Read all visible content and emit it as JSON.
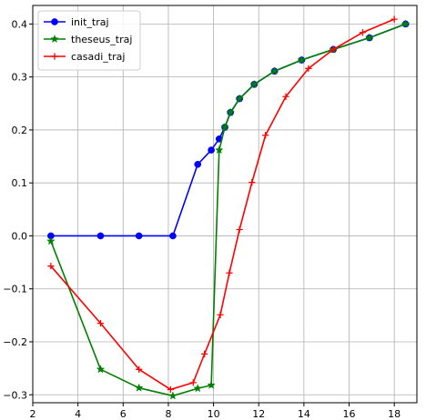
{
  "chart_data": {
    "type": "line",
    "title": "",
    "xlabel": "",
    "ylabel": "",
    "xlim": [
      2.0,
      19.0
    ],
    "ylim": [
      -0.315,
      0.435
    ],
    "xticks": [
      2,
      4,
      6,
      8,
      10,
      12,
      14,
      16,
      18
    ],
    "yticks": [
      -0.3,
      -0.2,
      -0.1,
      0.0,
      0.1,
      0.2,
      0.3,
      0.4
    ],
    "xtick_labels": [
      "2",
      "4",
      "6",
      "8",
      "10",
      "12",
      "14",
      "16",
      "18"
    ],
    "ytick_labels": [
      "−0.3",
      "−0.2",
      "−0.1",
      "0.0",
      "0.1",
      "0.2",
      "0.3",
      "0.4"
    ],
    "grid": true,
    "legend_position": "top-left",
    "series": [
      {
        "name": "init_traj",
        "color": "#0000ff",
        "marker": "circle",
        "x": [
          2.8,
          5.0,
          6.7,
          8.2,
          9.3,
          9.9,
          10.25,
          10.5,
          10.75,
          11.15,
          11.8,
          12.7,
          13.9,
          15.3,
          16.9,
          18.5
        ],
        "y": [
          0.0,
          0.0,
          0.0,
          0.0,
          0.135,
          0.162,
          0.183,
          0.205,
          0.233,
          0.259,
          0.286,
          0.311,
          0.332,
          0.352,
          0.374,
          0.4
        ]
      },
      {
        "name": "theseus_traj",
        "color": "#008000",
        "marker": "star",
        "x": [
          2.8,
          5.0,
          6.7,
          8.2,
          9.3,
          9.9,
          10.25,
          10.5,
          10.75,
          11.15,
          11.8,
          12.7,
          13.9,
          15.3,
          16.9,
          18.5
        ],
        "y": [
          -0.01,
          -0.252,
          -0.287,
          -0.302,
          -0.288,
          -0.282,
          0.162,
          0.205,
          0.233,
          0.259,
          0.286,
          0.311,
          0.332,
          0.352,
          0.374,
          0.4
        ]
      },
      {
        "name": "casadi_traj",
        "color": "#ff0000",
        "marker": "plus",
        "x": [
          2.8,
          5.0,
          6.7,
          8.1,
          9.1,
          9.6,
          10.3,
          10.7,
          11.15,
          11.7,
          12.3,
          13.2,
          14.2,
          15.3,
          16.6,
          18.0
        ],
        "y": [
          -0.057,
          -0.165,
          -0.252,
          -0.29,
          -0.277,
          -0.223,
          -0.149,
          -0.07,
          0.012,
          0.101,
          0.19,
          0.263,
          0.316,
          0.352,
          0.384,
          0.409
        ]
      }
    ]
  }
}
